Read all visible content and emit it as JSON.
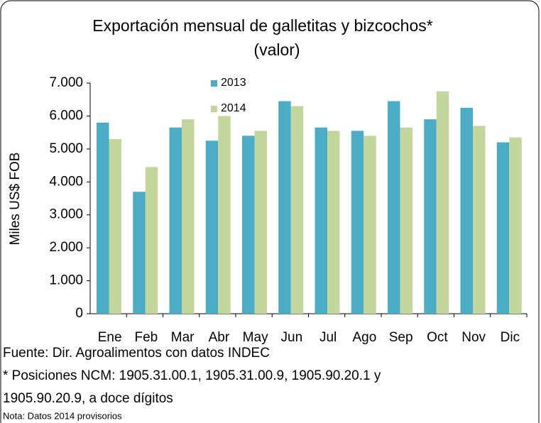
{
  "chart_data": {
    "type": "bar",
    "title_lines": [
      "Exportación mensual de galletitas y bizcochos*",
      "(valor)"
    ],
    "y_label": "Miles US$ FOB",
    "categories": [
      "Ene",
      "Feb",
      "Mar",
      "Abr",
      "May",
      "Jun",
      "Jul",
      "Ago",
      "Sep",
      "Oct",
      "Nov",
      "Dic"
    ],
    "series": [
      {
        "name": "2013",
        "color": "#4bacc6",
        "values": [
          5800,
          3700,
          5650,
          5250,
          5400,
          6450,
          5650,
          5550,
          6450,
          5900,
          6250,
          5200
        ]
      },
      {
        "name": "2014",
        "color": "#c3d69b",
        "values": [
          5300,
          4450,
          5900,
          6000,
          5550,
          6300,
          5550,
          5400,
          5650,
          6750,
          5700,
          5350
        ]
      }
    ],
    "ylim": [
      0,
      7000
    ],
    "yticks": [
      0,
      {
        "value": 1000,
        "label": "1.000"
      },
      {
        "value": 2000,
        "label": "2.000"
      },
      {
        "value": 3000,
        "label": "3.000"
      },
      {
        "value": 4000,
        "label": "4.000"
      },
      {
        "value": 5000,
        "label": "5.000"
      },
      {
        "value": 6000,
        "label": "6.000"
      },
      {
        "value": 7000,
        "label": "7.000"
      }
    ],
    "grid": false,
    "notes": [
      "Fuente: Dir. Agroalimentos con datos INDEC",
      "* Posiciones NCM:  1905.31.00.1, 1905.31.00.9, 1905.90.20.1 y",
      "1905.90.20.9, a doce dígitos"
    ],
    "small_note": "Nota: Datos 2014 provisorios"
  }
}
